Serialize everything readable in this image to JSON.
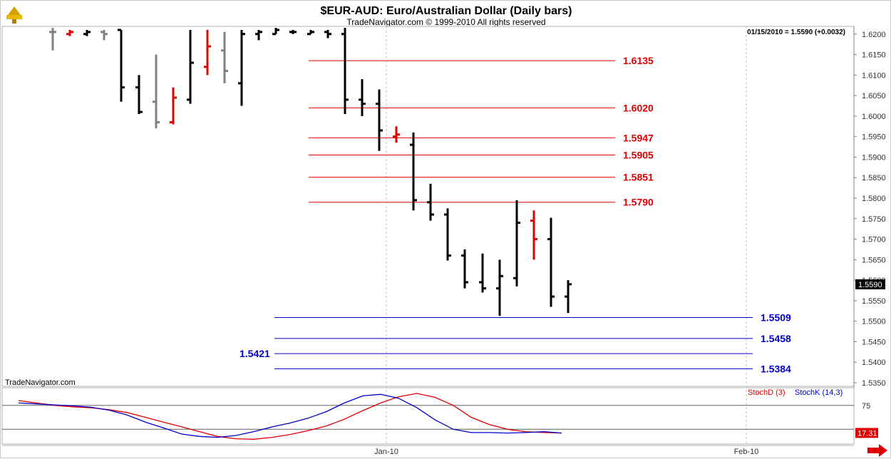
{
  "header": {
    "title": "$EUR-AUD:  Euro/Australian Dollar  (Daily bars)",
    "copyright": "TradeNavigator.com © 1999-2010 All rights reserved",
    "last_value": "01/15/2010 = 1.5590 (+0.0032)"
  },
  "watermark": "TradeNavigator.com",
  "colors": {
    "resistance": "#e00000",
    "support": "#0000cc",
    "bar_normal": "#000000",
    "bar_gray": "#808080",
    "bar_red": "#e00000",
    "stoch_d": "#e00000",
    "stoch_k": "#0000cc",
    "grid": "#c0c0c0"
  },
  "chart_data": {
    "type": "ohlc",
    "y_range": [
      1.535,
      1.621
    ],
    "price_ticks": [
      "1.6200",
      "1.6150",
      "1.6100",
      "1.6050",
      "1.6000",
      "1.5950",
      "1.5900",
      "1.5850",
      "1.5800",
      "1.5750",
      "1.5700",
      "1.5650",
      "1.5600",
      "1.5550",
      "1.5500",
      "1.5450",
      "1.5400",
      "1.5350"
    ],
    "x_labels": [
      "Jan-10",
      "Feb-10"
    ],
    "current_price": "1.5590",
    "resistance_levels": [
      "1.6135",
      "1.6020",
      "1.5947",
      "1.5905",
      "1.5851",
      "1.5790"
    ],
    "support_levels": [
      "1.5509",
      "1.5458",
      "1.5421",
      "1.5384"
    ],
    "bars": [
      {
        "o": 1.6205,
        "h": 1.6215,
        "l": 1.616,
        "c": 1.6205,
        "color": "gray"
      },
      {
        "o": 1.62,
        "h": 1.621,
        "l": 1.6195,
        "c": 1.6205,
        "color": "red"
      },
      {
        "o": 1.62,
        "h": 1.621,
        "l": 1.6195,
        "c": 1.6205,
        "color": "black"
      },
      {
        "o": 1.6205,
        "h": 1.621,
        "l": 1.6185,
        "c": 1.62,
        "color": "gray"
      },
      {
        "o": 1.621,
        "h": 1.621,
        "l": 1.6035,
        "c": 1.607,
        "color": "black"
      },
      {
        "o": 1.607,
        "h": 1.61,
        "l": 1.6005,
        "c": 1.601,
        "color": "black"
      },
      {
        "o": 1.6035,
        "h": 1.615,
        "l": 1.597,
        "c": 1.5985,
        "color": "gray"
      },
      {
        "o": 1.5985,
        "h": 1.607,
        "l": 1.598,
        "c": 1.6045,
        "color": "red"
      },
      {
        "o": 1.604,
        "h": 1.621,
        "l": 1.603,
        "c": 1.613,
        "color": "black"
      },
      {
        "o": 1.612,
        "h": 1.621,
        "l": 1.61,
        "c": 1.617,
        "color": "red"
      },
      {
        "o": 1.616,
        "h": 1.6205,
        "l": 1.608,
        "c": 1.611,
        "color": "gray"
      },
      {
        "o": 1.608,
        "h": 1.621,
        "l": 1.6025,
        "c": 1.62,
        "color": "black"
      },
      {
        "o": 1.62,
        "h": 1.621,
        "l": 1.6185,
        "c": 1.6205,
        "color": "black"
      },
      {
        "o": 1.62,
        "h": 1.6215,
        "l": 1.62,
        "c": 1.621,
        "color": "black"
      },
      {
        "o": 1.6205,
        "h": 1.621,
        "l": 1.62,
        "c": 1.6205,
        "color": "black"
      },
      {
        "o": 1.62,
        "h": 1.621,
        "l": 1.62,
        "c": 1.6205,
        "color": "black"
      },
      {
        "o": 1.6205,
        "h": 1.621,
        "l": 1.619,
        "c": 1.62,
        "color": "black"
      },
      {
        "o": 1.62,
        "h": 1.6215,
        "l": 1.6005,
        "c": 1.604,
        "color": "black"
      },
      {
        "o": 1.604,
        "h": 1.609,
        "l": 1.6,
        "c": 1.603,
        "color": "black"
      },
      {
        "o": 1.603,
        "h": 1.6065,
        "l": 1.5915,
        "c": 1.5965,
        "color": "black"
      },
      {
        "o": 1.595,
        "h": 1.5975,
        "l": 1.5935,
        "c": 1.5955,
        "color": "red"
      },
      {
        "o": 1.593,
        "h": 1.596,
        "l": 1.577,
        "c": 1.5795,
        "color": "black"
      },
      {
        "o": 1.579,
        "h": 1.5835,
        "l": 1.5745,
        "c": 1.576,
        "color": "black"
      },
      {
        "o": 1.576,
        "h": 1.5775,
        "l": 1.5648,
        "c": 1.566,
        "color": "black"
      },
      {
        "o": 1.566,
        "h": 1.5675,
        "l": 1.558,
        "c": 1.5595,
        "color": "black"
      },
      {
        "o": 1.5595,
        "h": 1.5665,
        "l": 1.557,
        "c": 1.558,
        "color": "black"
      },
      {
        "o": 1.558,
        "h": 1.565,
        "l": 1.5513,
        "c": 1.561,
        "color": "black"
      },
      {
        "o": 1.5605,
        "h": 1.5795,
        "l": 1.5585,
        "c": 1.574,
        "color": "black"
      },
      {
        "o": 1.5745,
        "h": 1.577,
        "l": 1.565,
        "c": 1.57,
        "color": "red"
      },
      {
        "o": 1.57,
        "h": 1.5752,
        "l": 1.5535,
        "c": 1.556,
        "color": "black"
      },
      {
        "o": 1.556,
        "h": 1.56,
        "l": 1.552,
        "c": 1.559,
        "color": "black"
      }
    ],
    "stochastic": {
      "labels": {
        "d": "StochD (3)",
        "k": "StochK (14,3)"
      },
      "levels": [
        "75",
        "25"
      ],
      "last_k": "17.31",
      "d_values": [
        85,
        80,
        75,
        72,
        70,
        66,
        60,
        50,
        40,
        30,
        20,
        10,
        5,
        4,
        8,
        14,
        22,
        32,
        46,
        64,
        80,
        93,
        100,
        92,
        75,
        50,
        35,
        25,
        20,
        18,
        17
      ],
      "k_values": [
        80,
        78,
        76,
        74,
        71,
        65,
        55,
        40,
        28,
        15,
        10,
        8,
        12,
        20,
        30,
        38,
        48,
        62,
        80,
        95,
        98,
        90,
        70,
        45,
        25,
        18,
        18,
        17,
        18,
        20,
        17
      ]
    }
  }
}
